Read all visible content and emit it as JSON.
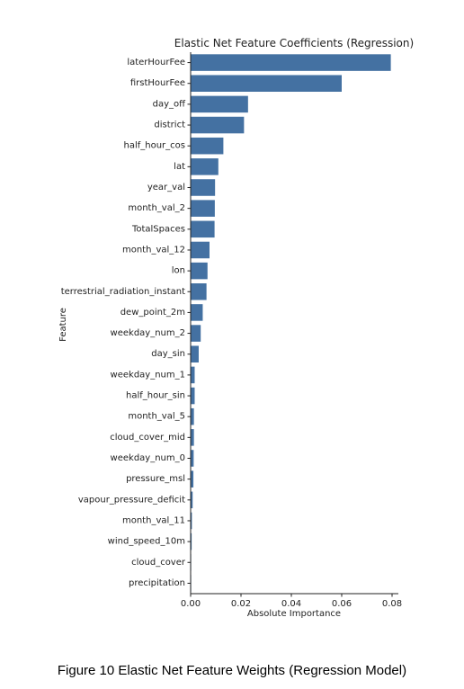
{
  "caption": "Figure 10 Elastic Net Feature Weights (Regression Model)",
  "colors": {
    "bar": "#4471a2",
    "axis": "#222222"
  },
  "chart_data": {
    "type": "bar",
    "orientation": "horizontal",
    "title": "Elastic Net Feature Coefficients (Regression)",
    "xlabel": "Absolute Importance",
    "ylabel": "Feature",
    "xlim": [
      0,
      0.0825
    ],
    "xticks": [
      0,
      0.02,
      0.04,
      0.06,
      0.08
    ],
    "xtick_labels": [
      "0.00",
      "0.02",
      "0.04",
      "0.06",
      "0.08"
    ],
    "grid": false,
    "categories": [
      "laterHourFee",
      "firstHourFee",
      "day_off",
      "district",
      "half_hour_cos",
      "lat",
      "year_val",
      "month_val_2",
      "TotalSpaces",
      "month_val_12",
      "lon",
      "terrestrial_radiation_instant",
      "dew_point_2m",
      "weekday_num_2",
      "day_sin",
      "weekday_num_1",
      "half_hour_sin",
      "month_val_5",
      "cloud_cover_mid",
      "weekday_num_0",
      "pressure_msl",
      "vapour_pressure_deficit",
      "month_val_11",
      "wind_speed_10m",
      "cloud_cover",
      "precipitation"
    ],
    "values": [
      0.0795,
      0.06,
      0.0228,
      0.0212,
      0.013,
      0.011,
      0.0097,
      0.0096,
      0.0095,
      0.0075,
      0.0067,
      0.0063,
      0.0048,
      0.004,
      0.0032,
      0.0016,
      0.0016,
      0.0013,
      0.0013,
      0.0012,
      0.0011,
      0.0008,
      0.0005,
      0.0004,
      0.0002,
      0.0001
    ]
  }
}
